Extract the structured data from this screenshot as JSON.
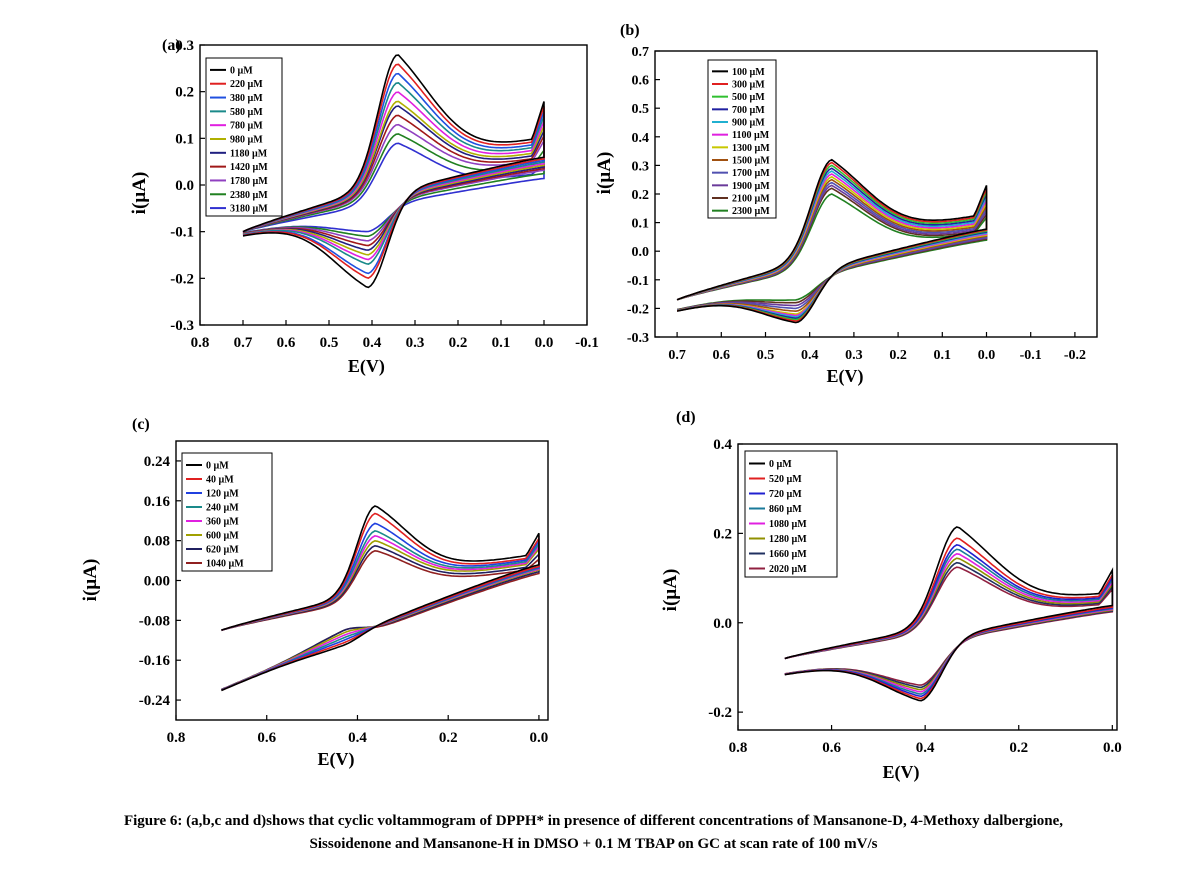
{
  "caption": {
    "line1": "Figure 6: (a,b,c and d)shows that cyclic voltammogram of DPPH* in presence of different concentrations of Mansanone-D, 4-Methoxy dalbergione,",
    "line2": "Sissoidenone and Mansanone-H in DMSO + 0.1 M TBAP on GC at scan rate of 100 mV/s"
  },
  "chart_data": [
    {
      "type": "line",
      "panel_label": "(a)",
      "xlabel": "E(V)",
      "ylabel": "i(µA)",
      "xlim": [
        0.8,
        -0.1
      ],
      "ylim": [
        -0.3,
        0.3
      ],
      "x_ticks": [
        0.8,
        0.7,
        0.6,
        0.5,
        0.4,
        0.3,
        0.2,
        0.1,
        0.0,
        -0.1
      ],
      "x_tick_labels": [
        "0.8",
        "0.7",
        "0.6",
        "0.5",
        "0.4",
        "0.3",
        "0.2",
        "0.1",
        "0.0",
        "-0.1"
      ],
      "y_ticks": [
        -0.3,
        -0.2,
        -0.1,
        0.0,
        0.1,
        0.2,
        0.3
      ],
      "y_tick_labels": [
        "-0.3",
        "-0.2",
        "-0.1",
        "0.0",
        "0.1",
        "0.2",
        "0.3"
      ],
      "legend_position": "top-left",
      "cv": {
        "e_start": 0.7,
        "e_end": 0.0,
        "e_pa": 0.34,
        "e_pc": 0.41,
        "w": 0.045,
        "i_anode_start": -0.1,
        "i_cath_start": -0.1
      },
      "series": [
        {
          "name": "0 µM",
          "color": "#000000",
          "ipa": 0.28,
          "ipc": -0.22,
          "i_end": 0.17
        },
        {
          "name": "220 µM",
          "color": "#e02020",
          "ipa": 0.26,
          "ipc": -0.2,
          "i_end": 0.16
        },
        {
          "name": "380 µM",
          "color": "#2050e0",
          "ipa": 0.24,
          "ipc": -0.19,
          "i_end": 0.15
        },
        {
          "name": "580 µM",
          "color": "#1a8a8a",
          "ipa": 0.22,
          "ipc": -0.17,
          "i_end": 0.14
        },
        {
          "name": "780 µM",
          "color": "#e020e0",
          "ipa": 0.2,
          "ipc": -0.16,
          "i_end": 0.13
        },
        {
          "name": "980 µM",
          "color": "#b0b000",
          "ipa": 0.18,
          "ipc": -0.15,
          "i_end": 0.12
        },
        {
          "name": "1180 µM",
          "color": "#202080",
          "ipa": 0.17,
          "ipc": -0.14,
          "i_end": 0.11
        },
        {
          "name": "1420 µM",
          "color": "#a01818",
          "ipa": 0.15,
          "ipc": -0.13,
          "i_end": 0.1
        },
        {
          "name": "1780 µM",
          "color": "#9040c0",
          "ipa": 0.13,
          "ipc": -0.12,
          "i_end": 0.09
        },
        {
          "name": "2380 µM",
          "color": "#208020",
          "ipa": 0.11,
          "ipc": -0.11,
          "i_end": 0.07
        },
        {
          "name": "3180 µM",
          "color": "#3030d0",
          "ipa": 0.09,
          "ipc": -0.1,
          "i_end": 0.04
        }
      ]
    },
    {
      "type": "line",
      "panel_label": "(b)",
      "xlabel": "E(V)",
      "ylabel": "i(µA)",
      "xlim": [
        0.75,
        -0.25
      ],
      "ylim": [
        -0.3,
        0.7
      ],
      "x_ticks": [
        0.7,
        0.6,
        0.5,
        0.4,
        0.3,
        0.2,
        0.1,
        0.0,
        -0.1,
        -0.2
      ],
      "x_tick_labels": [
        "0.7",
        "0.6",
        "0.5",
        "0.4",
        "0.3",
        "0.2",
        "0.1",
        "0.0",
        "-0.1",
        "-0.2"
      ],
      "y_ticks": [
        -0.3,
        -0.2,
        -0.1,
        0.0,
        0.1,
        0.2,
        0.3,
        0.4,
        0.5,
        0.6,
        0.7
      ],
      "y_tick_labels": [
        "-0.3",
        "-0.2",
        "-0.1",
        "0.0",
        "0.1",
        "0.2",
        "0.3",
        "0.4",
        "0.5",
        "0.6",
        "0.7"
      ],
      "legend_position": "top-left",
      "cv": {
        "e_start": 0.7,
        "e_end": 0.0,
        "e_pa": 0.35,
        "e_pc": 0.43,
        "w": 0.045,
        "i_anode_start": -0.17,
        "i_cath_start": -0.2
      },
      "series": [
        {
          "name": "100 µM",
          "color": "#000000",
          "ipa": 0.32,
          "ipc": -0.25,
          "i_end": 0.22
        },
        {
          "name": "300 µM",
          "color": "#e02020",
          "ipa": 0.31,
          "ipc": -0.245,
          "i_end": 0.21
        },
        {
          "name": "500 µM",
          "color": "#30c030",
          "ipa": 0.3,
          "ipc": -0.24,
          "i_end": 0.2
        },
        {
          "name": "700 µM",
          "color": "#2020a0",
          "ipa": 0.29,
          "ipc": -0.235,
          "i_end": 0.19
        },
        {
          "name": "900 µM",
          "color": "#20b0d0",
          "ipa": 0.28,
          "ipc": -0.23,
          "i_end": 0.18
        },
        {
          "name": "1100 µM",
          "color": "#e020e0",
          "ipa": 0.27,
          "ipc": -0.225,
          "i_end": 0.17
        },
        {
          "name": "1300 µM",
          "color": "#c8c800",
          "ipa": 0.26,
          "ipc": -0.22,
          "i_end": 0.16
        },
        {
          "name": "1500 µM",
          "color": "#a05010",
          "ipa": 0.25,
          "ipc": -0.21,
          "i_end": 0.15
        },
        {
          "name": "1700 µM",
          "color": "#5050b0",
          "ipa": 0.24,
          "ipc": -0.2,
          "i_end": 0.14
        },
        {
          "name": "1900 µM",
          "color": "#6a3a9a",
          "ipa": 0.23,
          "ipc": -0.19,
          "i_end": 0.13
        },
        {
          "name": "2100 µM",
          "color": "#603020",
          "ipa": 0.22,
          "ipc": -0.18,
          "i_end": 0.12
        },
        {
          "name": "2300 µM",
          "color": "#208020",
          "ipa": 0.2,
          "ipc": -0.17,
          "i_end": 0.11
        }
      ]
    },
    {
      "type": "line",
      "panel_label": "(c)",
      "xlabel": "E(V)",
      "ylabel": "i(µA)",
      "xlim": [
        0.8,
        -0.02
      ],
      "ylim": [
        -0.28,
        0.28
      ],
      "x_ticks": [
        0.8,
        0.6,
        0.4,
        0.2,
        0.0
      ],
      "x_tick_labels": [
        "0.8",
        "0.6",
        "0.4",
        "0.2",
        "0.0"
      ],
      "y_ticks": [
        -0.24,
        -0.16,
        -0.08,
        0.0,
        0.08,
        0.16,
        0.24
      ],
      "y_tick_labels": [
        "-0.24",
        "-0.16",
        "-0.08",
        "0.00",
        "0.08",
        "0.16",
        "0.24"
      ],
      "legend_position": "top-left",
      "cv": {
        "e_start": 0.7,
        "e_end": 0.0,
        "e_pa": 0.36,
        "e_pc": 0.43,
        "w": 0.04,
        "i_anode_start": -0.1,
        "i_cath_start": -0.22
      },
      "series": [
        {
          "name": "0 µM",
          "color": "#000000",
          "ipa": 0.15,
          "ipc": -0.13,
          "i_end": 0.09
        },
        {
          "name": "40 µM",
          "color": "#e02020",
          "ipa": 0.135,
          "ipc": -0.125,
          "i_end": 0.08
        },
        {
          "name": "120 µM",
          "color": "#2040e0",
          "ipa": 0.115,
          "ipc": -0.12,
          "i_end": 0.075
        },
        {
          "name": "240 µM",
          "color": "#1a8a8a",
          "ipa": 0.1,
          "ipc": -0.115,
          "i_end": 0.07
        },
        {
          "name": "360 µM",
          "color": "#e020e0",
          "ipa": 0.09,
          "ipc": -0.11,
          "i_end": 0.065
        },
        {
          "name": "600 µM",
          "color": "#a0a000",
          "ipa": 0.08,
          "ipc": -0.105,
          "i_end": 0.06
        },
        {
          "name": "620 µM",
          "color": "#202060",
          "ipa": 0.07,
          "ipc": -0.1,
          "i_end": 0.05
        },
        {
          "name": "1040 µM",
          "color": "#902020",
          "ipa": 0.06,
          "ipc": -0.1,
          "i_end": 0.04
        }
      ]
    },
    {
      "type": "line",
      "panel_label": "(d)",
      "xlabel": "E(V)",
      "ylabel": "i(µA)",
      "xlim": [
        0.8,
        -0.01
      ],
      "ylim": [
        -0.24,
        0.4
      ],
      "x_ticks": [
        0.8,
        0.6,
        0.4,
        0.2,
        0.0
      ],
      "x_tick_labels": [
        "0.8",
        "0.6",
        "0.4",
        "0.2",
        "0.0"
      ],
      "y_ticks": [
        -0.2,
        0.0,
        0.2,
        0.4
      ],
      "y_tick_labels": [
        "-0.2",
        "0.0",
        "0.2",
        "0.4"
      ],
      "legend_position": "top-left",
      "cv": {
        "e_start": 0.7,
        "e_end": 0.0,
        "e_pa": 0.33,
        "e_pc": 0.41,
        "w": 0.045,
        "i_anode_start": -0.08,
        "i_cath_start": -0.11
      },
      "series": [
        {
          "name": "0 µM",
          "color": "#000000",
          "ipa": 0.215,
          "ipc": -0.175,
          "i_end": 0.11
        },
        {
          "name": "520 µM",
          "color": "#e02020",
          "ipa": 0.19,
          "ipc": -0.17,
          "i_end": 0.1
        },
        {
          "name": "720 µM",
          "color": "#2020d0",
          "ipa": 0.175,
          "ipc": -0.165,
          "i_end": 0.095
        },
        {
          "name": "860 µM",
          "color": "#1a7a9a",
          "ipa": 0.165,
          "ipc": -0.16,
          "i_end": 0.09
        },
        {
          "name": "1080 µM",
          "color": "#e020e0",
          "ipa": 0.155,
          "ipc": -0.155,
          "i_end": 0.085
        },
        {
          "name": "1280 µM",
          "color": "#909000",
          "ipa": 0.145,
          "ipc": -0.15,
          "i_end": 0.08
        },
        {
          "name": "1660 µM",
          "color": "#203060",
          "ipa": 0.135,
          "ipc": -0.145,
          "i_end": 0.075
        },
        {
          "name": "2020 µM",
          "color": "#902040",
          "ipa": 0.125,
          "ipc": -0.14,
          "i_end": 0.07
        }
      ]
    }
  ]
}
